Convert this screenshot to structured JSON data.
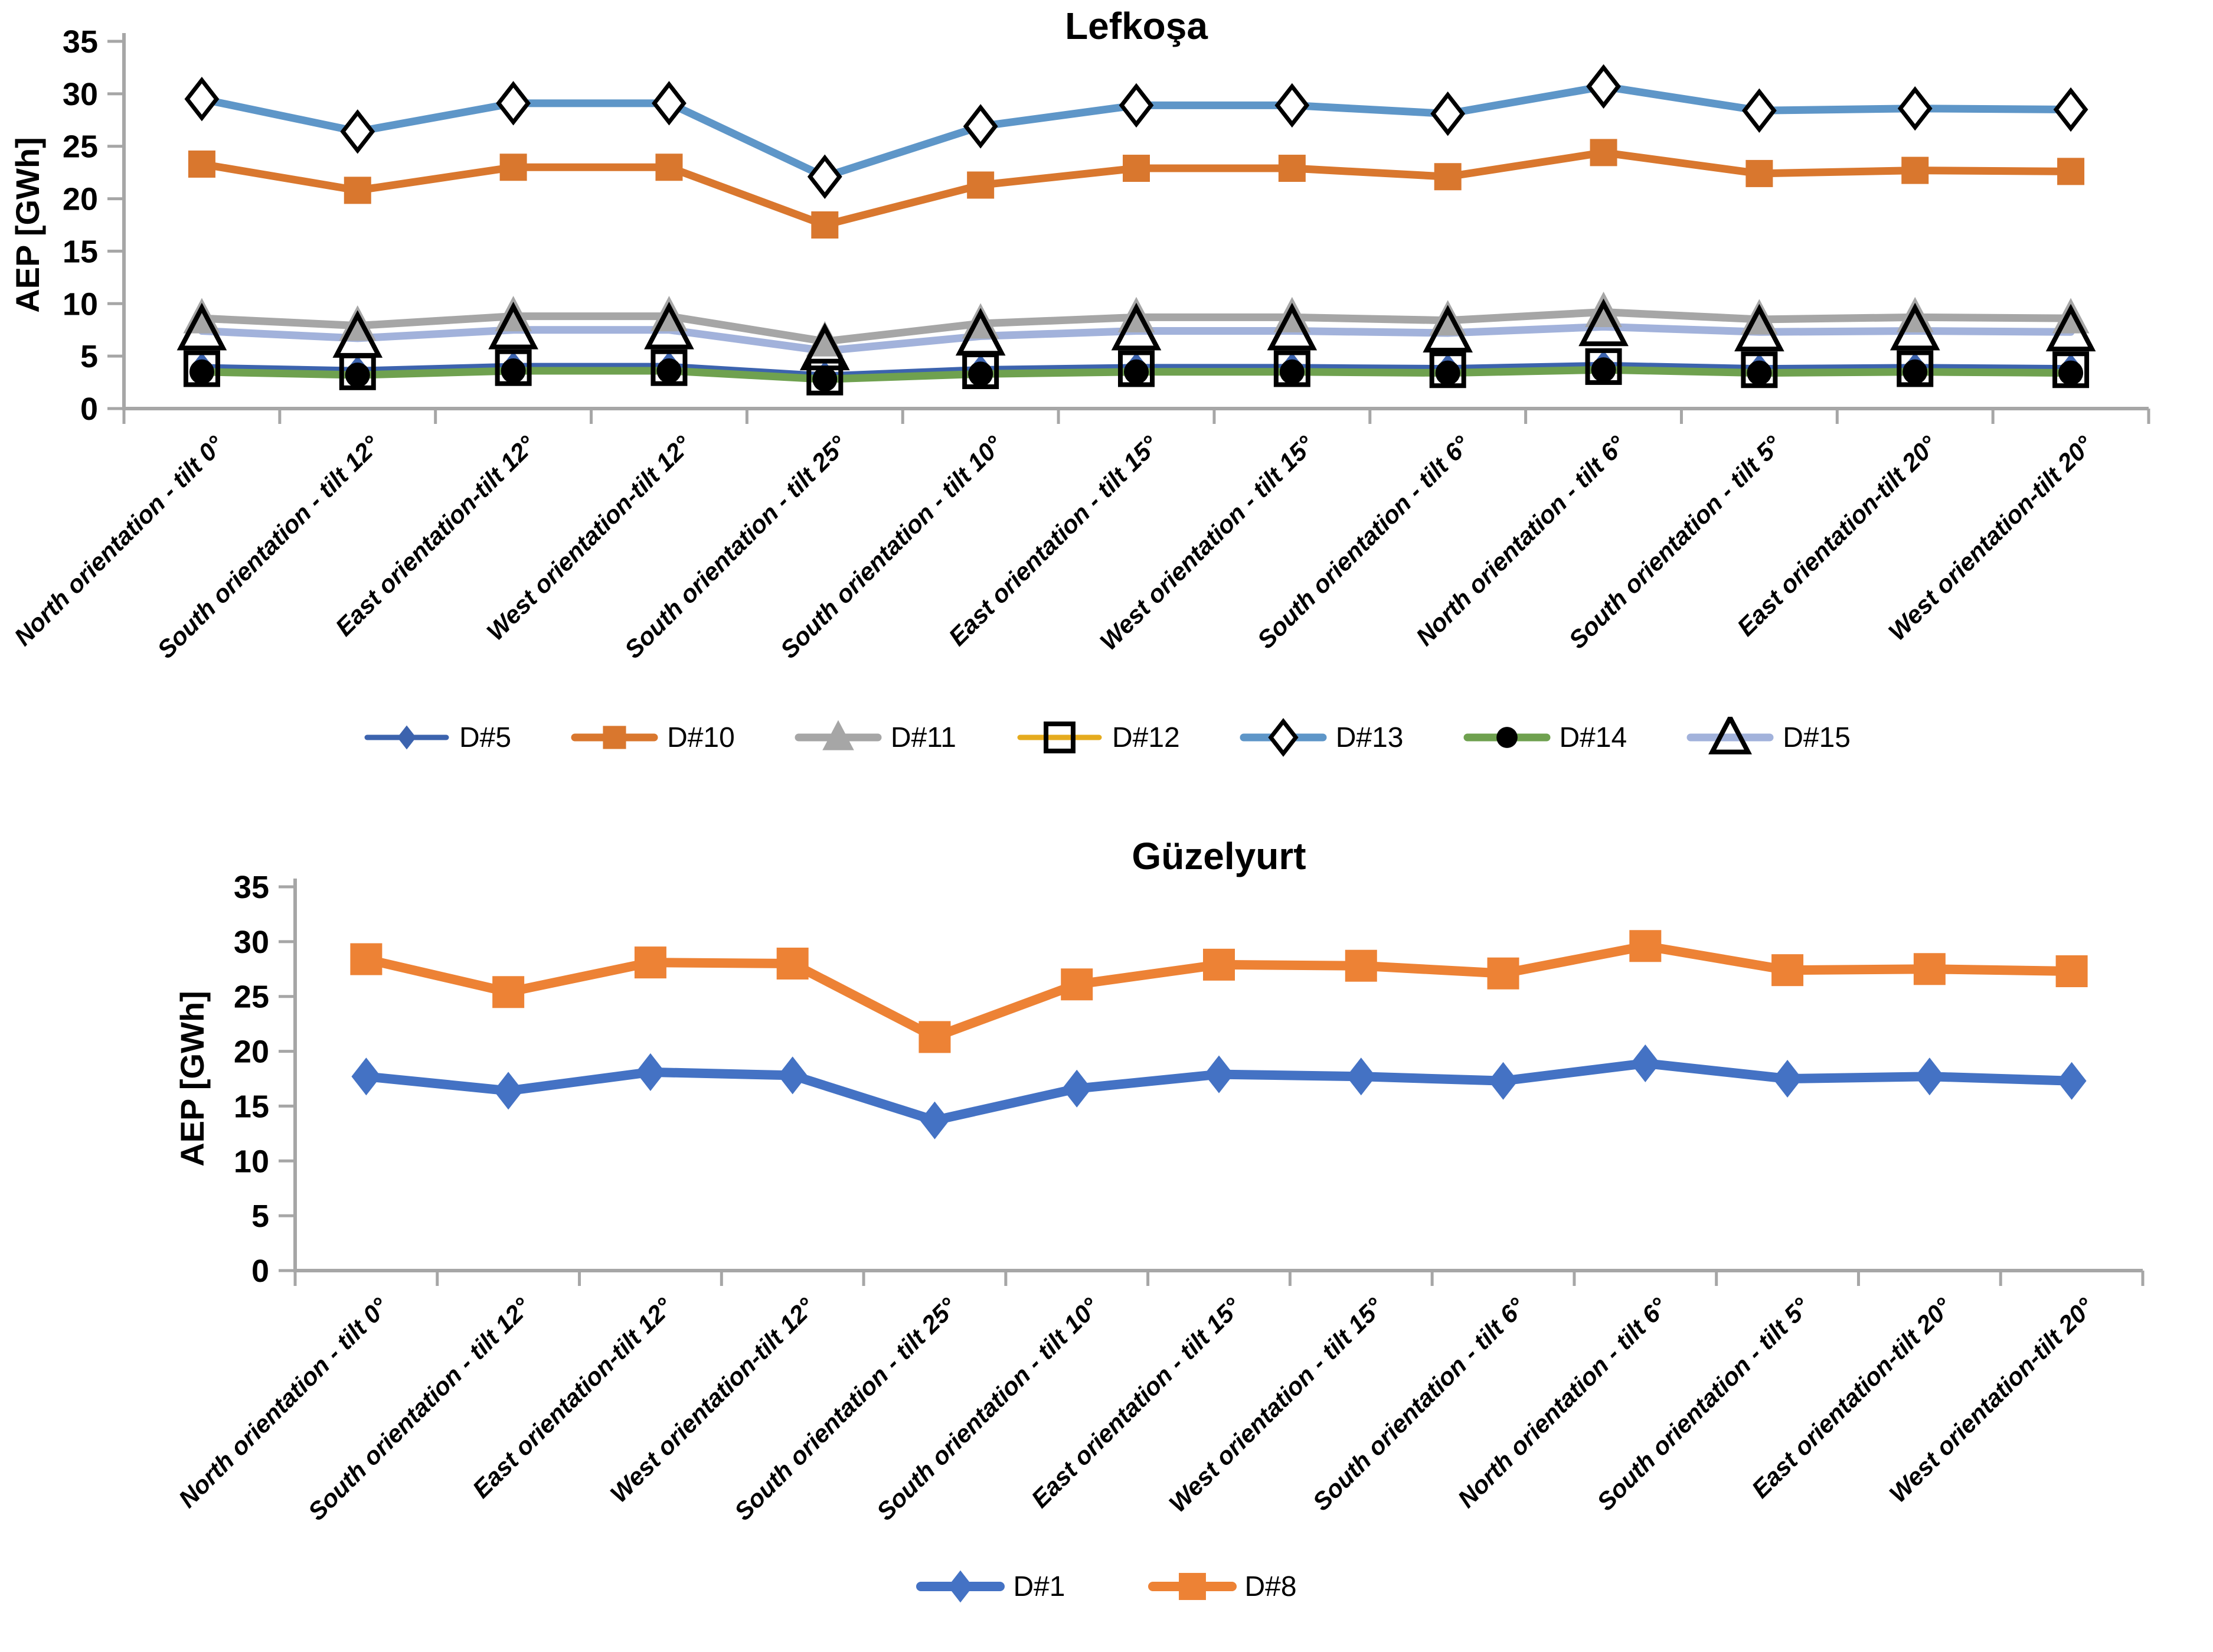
{
  "page": {
    "background": "#FFFFFF",
    "axis_color": "#A6A6A6",
    "text_color": "#000000"
  },
  "chart_data": [
    {
      "type": "line",
      "title": "Lefkoşa",
      "xlabel": "",
      "ylabel": "AEP [GWh]",
      "ylim": [
        0,
        35
      ],
      "yticks": [
        0,
        5,
        10,
        15,
        20,
        25,
        30,
        35
      ],
      "grid": false,
      "legend_position": "bottom",
      "categories": [
        "North orientation - tilt 0°",
        "South orientation - tilt 12°",
        "East orientation-tilt 12°",
        "West orientation-tilt 12°",
        "South orientation - tilt 25°",
        "South orientation - tilt 10°",
        "East orientation - tilt 15°",
        "West orientation - tilt 15°",
        "South orientation - tilt 6°",
        "North orientation - tilt 6°",
        "South orientation - tilt 5°",
        "East  orientation-tilt 20°",
        "West orientation-tilt 20°"
      ],
      "series": [
        {
          "name": "D#5",
          "color": "#3C63AE",
          "marker": "diamond",
          "values": [
            4.0,
            3.7,
            4.1,
            4.1,
            3.2,
            3.8,
            4.0,
            4.0,
            3.9,
            4.2,
            3.9,
            4.0,
            3.9
          ]
        },
        {
          "name": "D#10",
          "color": "#D9772E",
          "marker": "square",
          "values": [
            23.3,
            20.8,
            23.0,
            23.0,
            17.5,
            21.3,
            22.9,
            22.9,
            22.1,
            24.4,
            22.4,
            22.7,
            22.6
          ]
        },
        {
          "name": "D#11",
          "color": "#A6A6A6",
          "marker": "triangle",
          "values": [
            8.6,
            7.9,
            8.8,
            8.8,
            6.4,
            8.1,
            8.7,
            8.7,
            8.4,
            9.2,
            8.5,
            8.7,
            8.6
          ]
        },
        {
          "name": "D#12",
          "color": "#E5AB1E",
          "marker": "open-square",
          "values": [
            3.8,
            3.5,
            3.9,
            3.9,
            3.0,
            3.6,
            3.8,
            3.8,
            3.7,
            4.0,
            3.7,
            3.8,
            3.7
          ]
        },
        {
          "name": "D#13",
          "color": "#5E96C8",
          "marker": "open-diamond",
          "values": [
            29.5,
            26.4,
            29.1,
            29.1,
            22.1,
            26.9,
            28.9,
            28.9,
            28.1,
            30.7,
            28.4,
            28.6,
            28.5
          ]
        },
        {
          "name": "D#14",
          "color": "#6FA14F",
          "marker": "circle",
          "values": [
            3.5,
            3.2,
            3.6,
            3.6,
            2.8,
            3.3,
            3.5,
            3.5,
            3.4,
            3.7,
            3.4,
            3.5,
            3.4
          ]
        },
        {
          "name": "D#15",
          "color": "#A2B2DB",
          "marker": "open-triangle",
          "values": [
            7.4,
            6.7,
            7.5,
            7.5,
            5.5,
            6.9,
            7.4,
            7.4,
            7.2,
            7.8,
            7.3,
            7.4,
            7.3
          ]
        }
      ]
    },
    {
      "type": "line",
      "title": "Güzelyurt",
      "xlabel": "",
      "ylabel": "AEP [GWh]",
      "ylim": [
        0,
        35
      ],
      "yticks": [
        0,
        5,
        10,
        15,
        20,
        25,
        30,
        35
      ],
      "grid": false,
      "legend_position": "bottom",
      "categories": [
        "North orientation - tilt 0°",
        "South orientation - tilt 12°",
        "East orientation-tilt 12°",
        "West orientation-tilt 12°",
        "South orientation - tilt 25°",
        "South orientation - tilt 10°",
        "East orientation - tilt 15°",
        "West orientation - tilt 15°",
        "South orientation - tilt 6°",
        "North orientation - tilt 6°",
        "South orientation - tilt 5°",
        "East  orientation-tilt 20°",
        "West orientation-tilt 20°"
      ],
      "series": [
        {
          "name": "D#1",
          "color": "#4472C4",
          "marker": "diamond",
          "values": [
            17.7,
            16.4,
            18.1,
            17.8,
            13.7,
            16.6,
            17.9,
            17.7,
            17.3,
            18.9,
            17.5,
            17.7,
            17.3
          ]
        },
        {
          "name": "D#8",
          "color": "#ED8235",
          "marker": "square",
          "values": [
            28.4,
            25.4,
            28.1,
            28.0,
            21.3,
            26.1,
            27.9,
            27.8,
            27.1,
            29.6,
            27.4,
            27.5,
            27.3
          ]
        }
      ]
    }
  ]
}
